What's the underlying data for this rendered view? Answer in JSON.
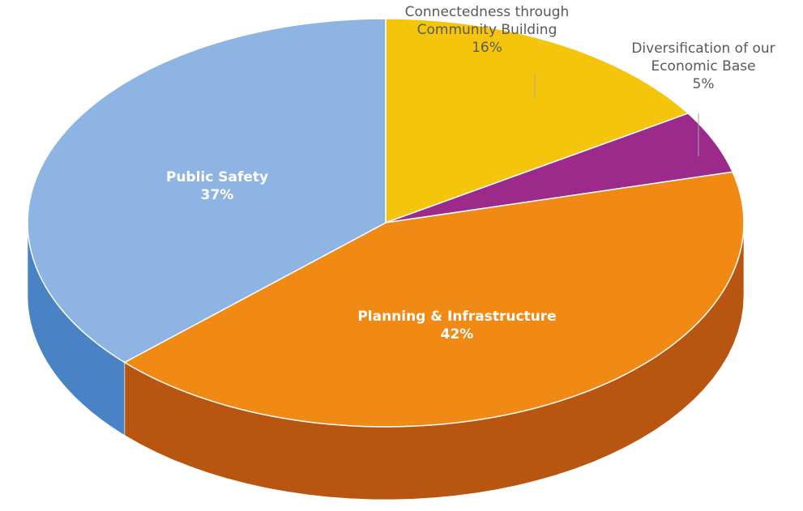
{
  "chart_data": {
    "type": "pie",
    "style": "3d",
    "title": "",
    "slices": [
      {
        "name": "Connectedness through Community Building",
        "label_lines": [
          "Connectedness through",
          "Community Building"
        ],
        "percent_label": "16%",
        "value": 16,
        "color": "#F5C50C",
        "side_color": "#C99A08",
        "label_position": "outside",
        "label_color": "#595959"
      },
      {
        "name": "Diversification of our Economic Base",
        "label_lines": [
          "Diversification of our",
          "Economic Base"
        ],
        "percent_label": "5%",
        "value": 5,
        "color": "#9B2A8B",
        "side_color": "#6E1A63",
        "label_position": "outside",
        "label_color": "#595959"
      },
      {
        "name": "Planning & Infrastructure",
        "label_lines": [
          "Planning & Infrastructure"
        ],
        "percent_label": "42%",
        "value": 42,
        "color": "#F08A14",
        "side_color": "#B85510",
        "label_position": "inside",
        "label_color": "#ffffff"
      },
      {
        "name": "Public Safety",
        "label_lines": [
          "Public Safety"
        ],
        "percent_label": "37%",
        "value": 37,
        "color": "#8DB4E2",
        "side_color": "#4A82C6",
        "label_position": "inside",
        "label_color": "#ffffff"
      }
    ]
  }
}
